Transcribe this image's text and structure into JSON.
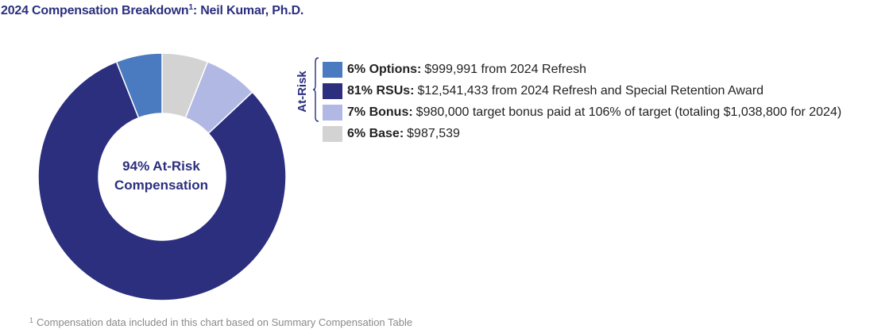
{
  "title": {
    "text": "2024 Compensation Breakdown",
    "footnote_mark": "1",
    "suffix": ": Neil Kumar, Ph.D."
  },
  "footnote": {
    "mark": "1",
    "text": "Compensation data included in this chart based on Summary Compensation Table"
  },
  "center_label": {
    "line1": "94% At-Risk",
    "line2": "Compensation"
  },
  "bracket_label": "At-Risk",
  "legend": [
    {
      "bold": "6% Options:",
      "text": "$999,991 from 2024 Refresh",
      "color": "#4a7abf"
    },
    {
      "bold": "81% RSUs:",
      "text": "$12,541,433 from 2024 Refresh and Special Retention Award",
      "color": "#2b2f7e"
    },
    {
      "bold": "7% Bonus:",
      "text": "$980,000 target bonus paid at 106% of target (totaling $1,038,800 for 2024)",
      "color": "#b1b8e3"
    },
    {
      "bold": "6% Base:",
      "text": "$987,539",
      "color": "#d3d3d3"
    }
  ],
  "chart_data": {
    "type": "pie",
    "title": "2024 Compensation Breakdown: Neil Kumar, Ph.D.",
    "categories": [
      "Base",
      "Bonus",
      "RSUs",
      "Options"
    ],
    "values": [
      6,
      7,
      81,
      6
    ],
    "units": "percent",
    "colors": [
      "#d3d3d3",
      "#b1b8e3",
      "#2b2f7e",
      "#4a7abf"
    ],
    "center_text": "94% At-Risk Compensation",
    "legend_placement": "right"
  }
}
